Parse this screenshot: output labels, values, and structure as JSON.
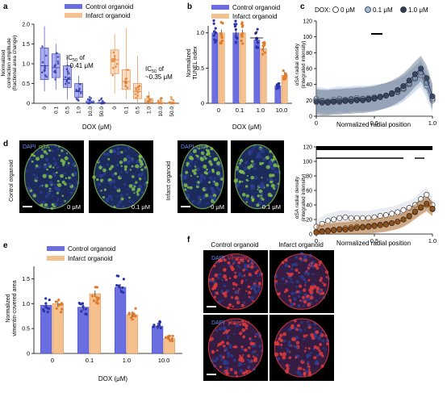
{
  "colors": {
    "control": "#6a6ee0",
    "control_dark": "#2b34a8",
    "infarct": "#f4c08e",
    "infarct_dark": "#e07a2a",
    "dox0_face": "#ffffff",
    "dox01": "#9dbde6",
    "dox1": "#2d3e5a",
    "dox01_orange": "#e59a52",
    "dox1_orange": "#8a4a14",
    "stain_blue": "#2b3d8e",
    "stain_green": "#7fc248",
    "stain_red": "#e23b3b"
  },
  "panels": {
    "a": {
      "letter": "a",
      "legend": [
        "Control organoid",
        "Infarct organoid"
      ],
      "ylabel_lines": [
        "Normalized",
        "contraction amplitude",
        "(fractional area change)"
      ],
      "xlabel": "DOX (μM)",
      "annotations": [
        {
          "line1": "IC",
          "sub": "50",
          "line1b": " of",
          "line2": "~0.41 μM"
        },
        {
          "line1": "IC",
          "sub": "50",
          "line1b": " of",
          "line2": "~0.35 μM"
        }
      ]
    },
    "b": {
      "letter": "b",
      "legend": [
        "Control organoid",
        "Infarct organoid"
      ],
      "ylabel_lines": [
        "Normalized",
        "TUNEL index"
      ],
      "xlabel": "DOX (μM)",
      "sig": "*"
    },
    "c": {
      "letter": "c",
      "legend_title": "DOX:",
      "legend": [
        "0 μM",
        "0.1 μM",
        "1.0 μM"
      ],
      "ylabel_lines": [
        "αSA radial density",
        "(integrated intensity)"
      ],
      "xlabel": "Normalized radial position"
    },
    "c2": {
      "ylabel_lines": [
        "αSA radial density",
        "(integrated intensity)"
      ],
      "xlabel": "Normalized radial position"
    },
    "d": {
      "letter": "d",
      "stain": [
        "DAPI",
        "αSA"
      ],
      "rows": [
        "Control organoid",
        "Infarct organoid"
      ],
      "doses": [
        "0 μM",
        "0.1 μM",
        "0 μM",
        "0.1 μM"
      ]
    },
    "e": {
      "letter": "e",
      "legend": [
        "Control organoid",
        "Infarct organoid"
      ],
      "ylabel_lines": [
        "Normalized",
        "vimentin-covered area"
      ],
      "xlabel": "DOX (μM)"
    },
    "f": {
      "letter": "f",
      "cols": [
        "Control organoid",
        "Infarct organoid"
      ],
      "stain": [
        "DAPI",
        "Vimentin"
      ],
      "rows": [
        "0.1 μM DOX",
        "1.0 μM DOX"
      ]
    }
  },
  "chart_data": [
    {
      "panel": "a",
      "type": "bar",
      "categories": [
        "0",
        "0.1",
        "0.5",
        "1.0",
        "10.0",
        "50.0"
      ],
      "ylim": [
        0,
        2
      ],
      "yticks": [
        "0",
        "0.5",
        "1.0",
        "1.5",
        "2.0"
      ],
      "series": [
        {
          "name": "Control organoid",
          "box": [
            [
              0.6,
              0.95,
              1.4
            ],
            [
              0.65,
              0.9,
              1.25
            ],
            [
              0.4,
              0.6,
              0.95
            ],
            [
              0.15,
              0.3,
              0.5
            ],
            [
              0.0,
              0.02,
              0.06
            ],
            [
              0.0,
              0.0,
              0.02
            ]
          ],
          "whisker": [
            [
              0.3,
              1.95
            ],
            [
              0.35,
              1.5
            ],
            [
              0.1,
              1.2
            ],
            [
              0.05,
              0.7
            ],
            [
              0.0,
              0.1
            ],
            [
              0.0,
              0.05
            ]
          ]
        },
        {
          "name": "Infarct organoid",
          "box": [
            [
              0.75,
              1.1,
              1.35
            ],
            [
              0.35,
              0.55,
              0.85
            ],
            [
              0.12,
              0.3,
              0.5
            ],
            [
              0.02,
              0.06,
              0.12
            ],
            [
              0.0,
              0.0,
              0.02
            ],
            [
              0.0,
              0.0,
              0.02
            ]
          ],
          "whisker": [
            [
              0.25,
              1.75
            ],
            [
              0.1,
              1.9
            ],
            [
              0.0,
              1.2
            ],
            [
              0.0,
              0.3
            ],
            [
              0.0,
              0.05
            ],
            [
              0.0,
              0.05
            ]
          ]
        }
      ]
    },
    {
      "panel": "b",
      "type": "bar",
      "categories": [
        "0",
        "0.1",
        "1.0",
        "10.0"
      ],
      "ylim": [
        0,
        1.1
      ],
      "yticks": [
        "0",
        "0.5",
        "1.0"
      ],
      "series": [
        {
          "name": "Control organoid",
          "values": [
            1.0,
            1.0,
            0.9,
            0.25
          ]
        },
        {
          "name": "Infarct organoid",
          "values": [
            1.0,
            1.0,
            0.78,
            0.4
          ]
        }
      ]
    },
    {
      "panel": "c",
      "type": "line",
      "x": [
        0,
        0.05,
        0.1,
        0.15,
        0.2,
        0.25,
        0.3,
        0.35,
        0.4,
        0.45,
        0.5,
        0.55,
        0.6,
        0.65,
        0.7,
        0.75,
        0.8,
        0.85,
        0.9,
        0.95,
        1.0
      ],
      "xlim": [
        0,
        1
      ],
      "ylim": [
        0,
        120
      ],
      "xticks": [
        "0",
        "0.5",
        "1.0"
      ],
      "yticks": [
        "0",
        "20",
        "40",
        "60",
        "80",
        "100",
        "120"
      ],
      "series": [
        {
          "name": "0 μM",
          "values": [
            22,
            20,
            19,
            21,
            22,
            21,
            22,
            23,
            22,
            23,
            24,
            25,
            26,
            28,
            30,
            34,
            40,
            47,
            52,
            38,
            20
          ]
        },
        {
          "name": "0.1 μM",
          "values": [
            20,
            19,
            18,
            19,
            20,
            20,
            21,
            21,
            22,
            22,
            23,
            24,
            26,
            28,
            31,
            35,
            41,
            48,
            55,
            42,
            22
          ]
        },
        {
          "name": "1.0 μM",
          "values": [
            18,
            17,
            17,
            18,
            18,
            19,
            19,
            20,
            20,
            21,
            22,
            24,
            26,
            29,
            33,
            38,
            45,
            53,
            60,
            48,
            25
          ]
        }
      ]
    },
    {
      "panel": "c2",
      "type": "line",
      "x": [
        0,
        0.05,
        0.1,
        0.15,
        0.2,
        0.25,
        0.3,
        0.35,
        0.4,
        0.45,
        0.5,
        0.55,
        0.6,
        0.65,
        0.7,
        0.75,
        0.8,
        0.85,
        0.9,
        0.95,
        1.0
      ],
      "xlim": [
        0,
        1
      ],
      "ylim": [
        0,
        120
      ],
      "xticks": [
        "0",
        "0.5",
        "1.0"
      ],
      "yticks": [
        "0",
        "20",
        "40",
        "60",
        "80",
        "100",
        "120"
      ],
      "series": [
        {
          "name": "0 μM",
          "values": [
            10,
            14,
            18,
            20,
            22,
            23,
            22,
            22,
            22,
            22,
            23,
            25,
            26,
            28,
            30,
            33,
            36,
            40,
            48,
            54,
            40
          ]
        },
        {
          "name": "0.1 μM",
          "values": [
            3,
            4,
            5,
            6,
            7,
            8,
            9,
            10,
            10,
            11,
            12,
            13,
            14,
            15,
            17,
            20,
            24,
            30,
            36,
            40,
            34
          ]
        },
        {
          "name": "1.0 μM",
          "values": [
            2,
            3,
            4,
            5,
            6,
            6,
            7,
            8,
            9,
            10,
            11,
            12,
            13,
            15,
            17,
            20,
            25,
            31,
            37,
            42,
            35
          ]
        }
      ]
    },
    {
      "panel": "e",
      "type": "bar",
      "categories": [
        "0",
        "0.1",
        "1.0",
        "10.0"
      ],
      "ylim": [
        0,
        1.75
      ],
      "yticks": [
        "0",
        "0.5",
        "1.0",
        "1.5"
      ],
      "series": [
        {
          "name": "Control organoid",
          "values": [
            0.97,
            0.93,
            1.33,
            0.55
          ]
        },
        {
          "name": "Infarct organoid",
          "values": [
            1.0,
            1.2,
            0.78,
            0.3
          ]
        }
      ]
    }
  ]
}
